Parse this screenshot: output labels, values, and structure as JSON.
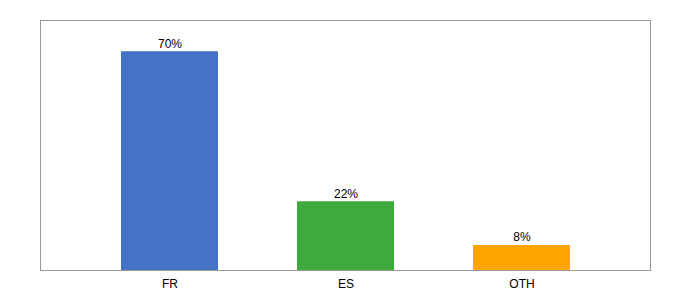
{
  "chart_data": {
    "type": "bar",
    "categories": [
      "FR",
      "ES",
      "OTH"
    ],
    "values": [
      70,
      22,
      8
    ],
    "value_labels": [
      "70%",
      "22%",
      "8%"
    ],
    "colors": [
      "#4472C4",
      "#3DAA3D",
      "#FFA500"
    ],
    "ylim": [
      0,
      80
    ],
    "data_labels": true,
    "tick_labels": "x",
    "grid": false
  }
}
